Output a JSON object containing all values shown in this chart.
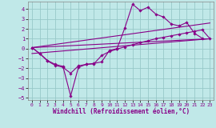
{
  "background_color": "#c0e8e8",
  "grid_color": "#98c8c8",
  "line_color": "#880088",
  "marker_color": "#880088",
  "xlabel": "Windchill (Refroidissement éolien,°C)",
  "xlim": [
    -0.5,
    23.5
  ],
  "ylim": [
    -5.2,
    4.8
  ],
  "yticks": [
    -5,
    -4,
    -3,
    -2,
    -1,
    0,
    1,
    2,
    3,
    4
  ],
  "xticks": [
    0,
    1,
    2,
    3,
    4,
    5,
    6,
    7,
    8,
    9,
    10,
    11,
    12,
    13,
    14,
    15,
    16,
    17,
    18,
    19,
    20,
    21,
    22,
    23
  ],
  "series1_x": [
    0,
    1,
    2,
    3,
    4,
    5,
    6,
    7,
    8,
    9,
    10,
    11,
    12,
    13,
    14,
    15,
    16,
    17,
    18,
    19,
    20,
    21,
    22
  ],
  "series1_y": [
    0.1,
    -0.5,
    -1.2,
    -1.6,
    -1.8,
    -4.8,
    -1.9,
    -1.6,
    -1.5,
    -1.35,
    -0.2,
    0.0,
    2.1,
    4.5,
    3.85,
    4.2,
    3.5,
    3.2,
    2.5,
    2.3,
    2.65,
    1.55,
    1.05
  ],
  "series2_x": [
    0,
    1,
    2,
    3,
    4,
    5,
    6,
    7,
    8,
    9,
    10,
    11,
    12,
    13,
    14,
    15,
    16,
    17,
    18,
    19,
    20,
    21,
    22,
    23
  ],
  "series2_y": [
    0.1,
    -0.5,
    -1.25,
    -1.7,
    -1.9,
    -2.5,
    -1.75,
    -1.6,
    -1.55,
    -0.7,
    -0.3,
    -0.05,
    0.18,
    0.4,
    0.6,
    0.8,
    1.0,
    1.15,
    1.3,
    1.45,
    1.6,
    1.75,
    1.9,
    1.0
  ],
  "series3_x": [
    0,
    23
  ],
  "series3_y": [
    0.1,
    2.6
  ],
  "series4_x": [
    0,
    23
  ],
  "series4_y": [
    0.1,
    1.0
  ],
  "series5_x": [
    0,
    23
  ],
  "series5_y": [
    -0.5,
    1.0
  ]
}
